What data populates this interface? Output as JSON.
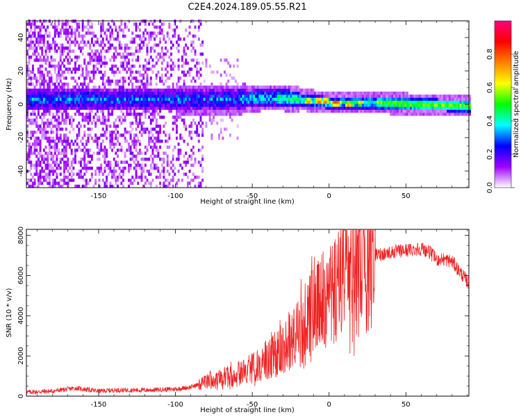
{
  "title": "C2E4.2024.189.05.55.R21",
  "chart_data": [
    {
      "type": "heatmap",
      "xlabel": "Height of straight line (km)",
      "ylabel": "Frequency (Hz)",
      "xlim": [
        -197,
        91
      ],
      "ylim": [
        -50,
        50
      ],
      "xticks": [
        -150,
        -100,
        -50,
        0,
        50
      ],
      "yticks": [
        -40,
        -20,
        0,
        20,
        40
      ],
      "xtick_labels": [
        "-150",
        "-100",
        "-50",
        "0",
        "50"
      ],
      "ytick_labels": [
        "-40",
        "-20",
        "0",
        "20",
        "40"
      ],
      "colorbar": {
        "label": "Normalized spectral amplitude",
        "range": [
          0,
          1
        ],
        "ticks": [
          0.0,
          0.2,
          0.4,
          0.6,
          0.8
        ],
        "tick_labels": [
          "0.0",
          "0.2",
          "0.4",
          "0.6",
          "0.8"
        ],
        "colors": [
          "#ffffff",
          "#a000ff",
          "#0000ff",
          "#00ffff",
          "#00ff00",
          "#ffff00",
          "#ff8000",
          "#ff0000",
          "#ff0080"
        ]
      },
      "band": {
        "center_hz": [
          [
            -197,
            2
          ],
          [
            -60,
            2
          ],
          [
            -45,
            3
          ],
          [
            -30,
            3
          ],
          [
            -20,
            2
          ],
          [
            0,
            0
          ],
          [
            30,
            0
          ],
          [
            91,
            -2
          ]
        ],
        "peaks": [
          {
            "x": -14,
            "y": 1,
            "amplitude": 0.85
          },
          {
            "x": -7,
            "y": 1,
            "amplitude": 0.9
          },
          {
            "x": -3,
            "y": 1,
            "amplitude": 0.88
          },
          {
            "x": 3,
            "y": 0,
            "amplitude": 0.9
          },
          {
            "x": 5,
            "y": 0,
            "amplitude": 0.88
          },
          {
            "x": 12,
            "y": -1,
            "amplitude": 0.8
          },
          {
            "x": 20,
            "y": 0,
            "amplitude": 0.75
          }
        ]
      }
    },
    {
      "type": "line",
      "xlabel": "Height of straight line (km)",
      "ylabel": "SNR (10 * v/v)",
      "xlim": [
        -197,
        91
      ],
      "ylim": [
        0,
        8300
      ],
      "xticks": [
        -150,
        -100,
        -50,
        0,
        50
      ],
      "yticks": [
        0,
        2000,
        4000,
        6000,
        8000
      ],
      "xtick_labels": [
        "-150",
        "-100",
        "-50",
        "0",
        "50"
      ],
      "ytick_labels": [
        "0",
        "2000",
        "4000",
        "6000",
        "8000"
      ],
      "color": "#ee2222",
      "series": [
        {
          "x": [
            -197,
            -180,
            -165,
            -150,
            -140,
            -120,
            -100,
            -90,
            -80,
            -70,
            -60,
            -50,
            -45,
            -40,
            -35,
            -30,
            -25,
            -20,
            -15,
            -10,
            -5,
            0,
            5,
            10,
            12,
            15,
            20,
            25,
            30,
            35,
            40,
            45,
            50,
            55,
            60,
            65,
            70,
            75,
            80,
            85,
            91
          ],
          "y": [
            200,
            250,
            400,
            250,
            300,
            300,
            350,
            450,
            700,
            900,
            1100,
            1400,
            1600,
            1800,
            2100,
            2400,
            2900,
            3300,
            3800,
            4200,
            4600,
            5000,
            5400,
            5700,
            7600,
            5800,
            6500,
            6900,
            7000,
            7100,
            7150,
            7200,
            7250,
            7300,
            7350,
            7200,
            6800,
            6800,
            6700,
            6200,
            5600
          ]
        }
      ]
    }
  ]
}
